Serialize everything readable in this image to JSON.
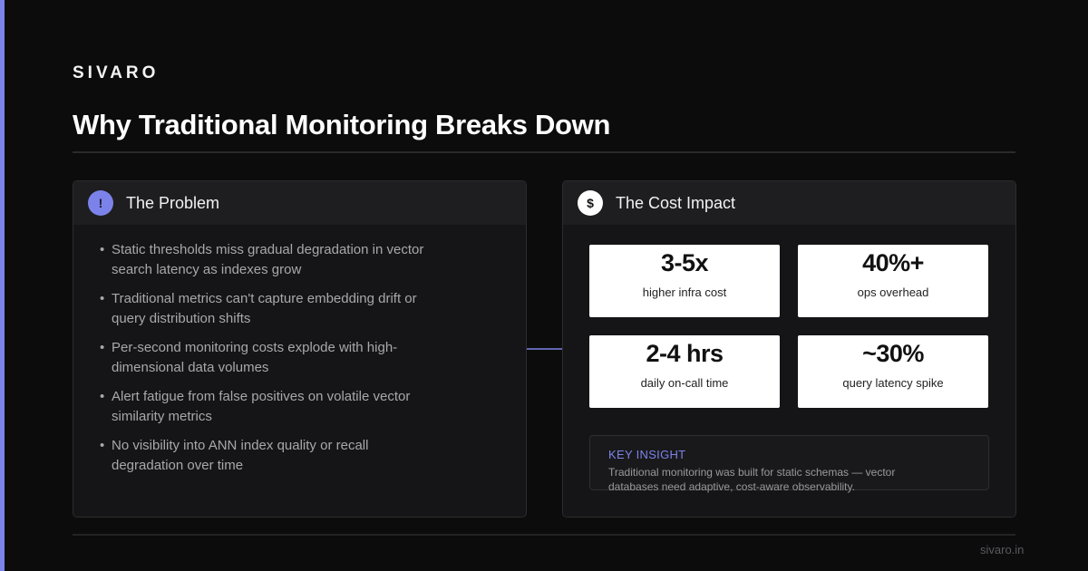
{
  "brand": "SIVARO",
  "title": "Why Traditional Monitoring Breaks Down",
  "problem": {
    "badge": "!",
    "heading": "The Problem",
    "bullets": [
      "Static thresholds miss gradual degradation in vector search latency as indexes grow",
      "Traditional metrics can't capture embedding drift or query distribution shifts",
      "Per-second monitoring costs explode with high-dimensional data volumes",
      "Alert fatigue from false positives on volatile vector similarity metrics",
      "No visibility into ANN index quality or recall degradation over time"
    ]
  },
  "cost": {
    "badge": "$",
    "heading": "The Cost Impact",
    "stats": [
      {
        "value": "3-5x",
        "label": "higher infra cost"
      },
      {
        "value": "40%+",
        "label": "ops overhead"
      },
      {
        "value": "2-4 hrs",
        "label": "daily on-call time"
      },
      {
        "value": "~30%",
        "label": "query latency spike"
      }
    ],
    "insight": {
      "label": "KEY INSIGHT",
      "text": "Traditional monitoring was built for static schemas — vector databases need adaptive, cost-aware observability."
    }
  },
  "footer": "sivaro.in",
  "colors": {
    "accent": "#7b83ea",
    "background": "#0c0c0d",
    "card": "#151517"
  }
}
